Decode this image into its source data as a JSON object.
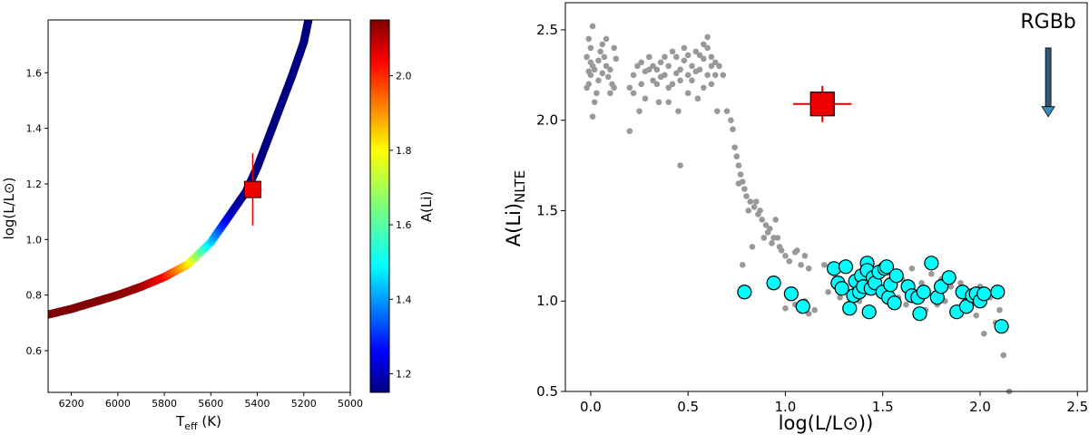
{
  "chart_data": [
    {
      "type": "line",
      "panel": "left",
      "xlabel_main": "T",
      "xlabel_sub": "eff",
      "xlabel_unit": " (K)",
      "ylabel": "log(L/L⊙)",
      "xlim": [
        6300,
        5000
      ],
      "ylim": [
        0.45,
        1.79
      ],
      "xticks": [
        6200,
        6000,
        5800,
        5600,
        5400,
        5200,
        5000
      ],
      "yticks": [
        "0.6",
        "0.8",
        "1.0",
        "1.2",
        "1.4",
        "1.6"
      ],
      "ytick_values": [
        0.6,
        0.8,
        1.0,
        1.2,
        1.4,
        1.6
      ],
      "track": {
        "teff": [
          6300,
          6200,
          6100,
          6000,
          5900,
          5800,
          5700,
          5600,
          5550,
          5500,
          5450,
          5400,
          5350,
          5300,
          5250,
          5200,
          5180
        ],
        "logL": [
          0.73,
          0.75,
          0.775,
          0.8,
          0.83,
          0.865,
          0.91,
          0.99,
          1.05,
          1.11,
          1.17,
          1.26,
          1.37,
          1.48,
          1.59,
          1.71,
          1.79
        ],
        "ali": [
          2.15,
          2.15,
          2.15,
          2.14,
          2.12,
          2.03,
          1.82,
          1.5,
          1.33,
          1.2,
          1.16,
          1.15,
          1.15,
          1.15,
          1.15,
          1.15,
          1.15
        ]
      },
      "star": {
        "teff": 5420,
        "logL": 1.18,
        "teff_err": 65,
        "logL_err": 0.13,
        "color": "#ee0000"
      },
      "colorbar": {
        "label": "A(Li)",
        "range": [
          1.15,
          2.15
        ],
        "ticks": [
          "1.2",
          "1.4",
          "1.6",
          "1.8",
          "2.0"
        ],
        "tick_values": [
          1.2,
          1.4,
          1.6,
          1.8,
          2.0
        ],
        "colormap": "jet"
      }
    },
    {
      "type": "scatter",
      "panel": "right",
      "xlabel": "log(L/L⊙))",
      "ylabel_main": "A(Li)",
      "ylabel_sub": "NLTE",
      "xlim": [
        -0.13,
        2.55
      ],
      "ylim": [
        0.5,
        2.65
      ],
      "xticks": [
        "0.0",
        "0.5",
        "1.0",
        "1.5",
        "2.0",
        "2.5"
      ],
      "xtick_values": [
        0.0,
        0.5,
        1.0,
        1.5,
        2.0,
        2.5
      ],
      "yticks": [
        "0.5",
        "1.0",
        "1.5",
        "2.0",
        "2.5"
      ],
      "ytick_values": [
        0.5,
        1.0,
        1.5,
        2.0,
        2.5
      ],
      "annotation": {
        "text": "RGBb",
        "x": 2.35,
        "y_start": 2.4,
        "y_end": 2.02
      },
      "series": [
        {
          "marker": "dot",
          "color": "#999999",
          "points": [
            [
              -0.01,
              2.2
            ],
            [
              0.0,
              2.25
            ],
            [
              0.01,
              2.3
            ],
            [
              -0.02,
              2.35
            ],
            [
              0.02,
              2.28
            ],
            [
              0.0,
              2.4
            ],
            [
              -0.01,
              2.45
            ],
            [
              0.01,
              2.52
            ],
            [
              0.03,
              2.15
            ],
            [
              -0.02,
              2.18
            ],
            [
              0.02,
              2.1
            ],
            [
              0.01,
              2.02
            ],
            [
              0.04,
              2.22
            ],
            [
              0.0,
              2.32
            ],
            [
              -0.01,
              2.27
            ],
            [
              0.05,
              2.38
            ],
            [
              0.06,
              2.42
            ],
            [
              0.07,
              2.35
            ],
            [
              0.08,
              2.3
            ],
            [
              0.06,
              2.26
            ],
            [
              0.09,
              2.24
            ],
            [
              0.1,
              2.28
            ],
            [
              0.11,
              2.2
            ],
            [
              0.12,
              2.4
            ],
            [
              0.13,
              2.34
            ],
            [
              0.08,
              2.45
            ],
            [
              0.1,
              2.15
            ],
            [
              0.12,
              2.18
            ],
            [
              0.04,
              2.33
            ],
            [
              0.2,
              1.94
            ],
            [
              0.2,
              2.18
            ],
            [
              0.22,
              2.25
            ],
            [
              0.24,
              2.3
            ],
            [
              0.26,
              2.2
            ],
            [
              0.28,
              2.27
            ],
            [
              0.3,
              2.35
            ],
            [
              0.32,
              2.22
            ],
            [
              0.34,
              2.28
            ],
            [
              0.36,
              2.32
            ],
            [
              0.38,
              2.25
            ],
            [
              0.4,
              2.3
            ],
            [
              0.42,
              2.2
            ],
            [
              0.44,
              2.35
            ],
            [
              0.46,
              2.28
            ],
            [
              0.48,
              2.33
            ],
            [
              0.5,
              2.25
            ],
            [
              0.52,
              2.3
            ],
            [
              0.54,
              2.38
            ],
            [
              0.56,
              2.28
            ],
            [
              0.58,
              2.34
            ],
            [
              0.6,
              2.4
            ],
            [
              0.62,
              2.3
            ],
            [
              0.64,
              2.25
            ],
            [
              0.22,
              2.15
            ],
            [
              0.26,
              2.32
            ],
            [
              0.3,
              2.28
            ],
            [
              0.34,
              2.2
            ],
            [
              0.38,
              2.35
            ],
            [
              0.42,
              2.38
            ],
            [
              0.46,
              2.22
            ],
            [
              0.5,
              2.36
            ],
            [
              0.54,
              2.27
            ],
            [
              0.58,
              2.42
            ],
            [
              0.6,
              2.25
            ],
            [
              0.62,
              2.35
            ],
            [
              0.64,
              2.32
            ],
            [
              0.28,
              2.12
            ],
            [
              0.32,
              2.3
            ],
            [
              0.36,
              2.24
            ],
            [
              0.4,
              2.18
            ],
            [
              0.44,
              2.26
            ],
            [
              0.48,
              2.4
            ],
            [
              0.52,
              2.22
            ],
            [
              0.56,
              2.36
            ],
            [
              0.6,
              2.46
            ],
            [
              0.62,
              2.2
            ],
            [
              0.4,
              2.1
            ],
            [
              0.45,
              2.05
            ],
            [
              0.5,
              2.15
            ],
            [
              0.55,
              2.12
            ],
            [
              0.58,
              2.18
            ],
            [
              0.35,
              2.1
            ],
            [
              0.25,
              2.05
            ],
            [
              0.46,
              1.75
            ],
            [
              0.65,
              2.05
            ],
            [
              0.66,
              2.3
            ],
            [
              0.68,
              2.25
            ],
            [
              0.7,
              2.05
            ],
            [
              0.72,
              2.0
            ],
            [
              0.73,
              1.95
            ],
            [
              0.74,
              1.85
            ],
            [
              0.75,
              1.8
            ],
            [
              0.76,
              1.75
            ],
            [
              0.77,
              1.7
            ],
            [
              0.78,
              1.66
            ],
            [
              0.79,
              1.62
            ],
            [
              0.8,
              1.58
            ],
            [
              0.82,
              1.55
            ],
            [
              0.84,
              1.52
            ],
            [
              0.85,
              1.55
            ],
            [
              0.87,
              1.5
            ],
            [
              0.88,
              1.45
            ],
            [
              0.9,
              1.42
            ],
            [
              0.92,
              1.4
            ],
            [
              0.94,
              1.35
            ],
            [
              0.95,
              1.45
            ],
            [
              0.97,
              1.3
            ],
            [
              0.98,
              1.28
            ],
            [
              1.0,
              1.25
            ],
            [
              1.02,
              1.22
            ],
            [
              1.05,
              1.27
            ],
            [
              1.08,
              1.2
            ],
            [
              1.1,
              1.25
            ],
            [
              1.12,
              1.18
            ],
            [
              0.76,
              1.65
            ],
            [
              0.81,
              1.5
            ],
            [
              0.86,
              1.48
            ],
            [
              0.91,
              1.38
            ],
            [
              0.96,
              1.35
            ],
            [
              1.06,
              1.28
            ],
            [
              0.78,
              1.2
            ],
            [
              0.83,
              1.3
            ],
            [
              0.89,
              1.35
            ],
            [
              0.93,
              1.32
            ],
            [
              1.2,
              1.2
            ],
            [
              1.25,
              1.15
            ],
            [
              1.3,
              1.18
            ],
            [
              1.35,
              1.12
            ],
            [
              1.4,
              1.15
            ],
            [
              1.45,
              1.1
            ],
            [
              1.5,
              1.2
            ],
            [
              1.55,
              1.15
            ],
            [
              1.6,
              1.12
            ],
            [
              1.65,
              1.18
            ],
            [
              1.7,
              1.1
            ],
            [
              1.75,
              1.15
            ],
            [
              1.8,
              1.12
            ],
            [
              1.85,
              1.08
            ],
            [
              1.9,
              1.1
            ],
            [
              1.95,
              1.05
            ],
            [
              2.0,
              1.08
            ],
            [
              2.05,
              1.02
            ],
            [
              2.1,
              0.95
            ],
            [
              1.22,
              1.05
            ],
            [
              1.28,
              1.02
            ],
            [
              1.33,
              0.98
            ],
            [
              1.38,
              1.0
            ],
            [
              1.42,
              0.95
            ],
            [
              1.48,
              1.05
            ],
            [
              1.52,
              1.0
            ],
            [
              1.58,
              1.02
            ],
            [
              1.62,
              0.98
            ],
            [
              1.68,
              1.0
            ],
            [
              1.72,
              0.95
            ],
            [
              1.78,
              0.98
            ],
            [
              1.82,
              1.0
            ],
            [
              1.88,
              0.95
            ],
            [
              1.92,
              1.0
            ],
            [
              1.98,
              0.92
            ],
            [
              2.02,
              0.82
            ],
            [
              2.08,
              0.88
            ],
            [
              2.12,
              0.7
            ],
            [
              2.15,
              0.5
            ],
            [
              1.15,
              0.95
            ],
            [
              1.1,
              1.0
            ],
            [
              1.05,
              0.98
            ],
            [
              1.0,
              0.96
            ],
            [
              1.12,
              0.93
            ]
          ]
        },
        {
          "marker": "circle",
          "color": "#00ffff",
          "points": [
            [
              0.79,
              1.05
            ],
            [
              0.94,
              1.1
            ],
            [
              1.03,
              1.04
            ],
            [
              1.09,
              0.97
            ],
            [
              1.25,
              1.18
            ],
            [
              1.27,
              1.1
            ],
            [
              1.29,
              1.07
            ],
            [
              1.31,
              1.19
            ],
            [
              1.33,
              0.96
            ],
            [
              1.35,
              1.03
            ],
            [
              1.36,
              1.11
            ],
            [
              1.38,
              1.05
            ],
            [
              1.39,
              1.14
            ],
            [
              1.4,
              1.08
            ],
            [
              1.42,
              1.21
            ],
            [
              1.42,
              1.17
            ],
            [
              1.43,
              0.94
            ],
            [
              1.44,
              1.07
            ],
            [
              1.45,
              1.13
            ],
            [
              1.46,
              1.1
            ],
            [
              1.48,
              1.16
            ],
            [
              1.5,
              1.05
            ],
            [
              1.51,
              1.18
            ],
            [
              1.52,
              1.19
            ],
            [
              1.53,
              1.02
            ],
            [
              1.54,
              1.09
            ],
            [
              1.56,
              0.99
            ],
            [
              1.57,
              1.14
            ],
            [
              1.63,
              1.08
            ],
            [
              1.65,
              1.03
            ],
            [
              1.68,
              1.02
            ],
            [
              1.69,
              0.93
            ],
            [
              1.71,
              1.05
            ],
            [
              1.75,
              1.21
            ],
            [
              1.78,
              1.02
            ],
            [
              1.8,
              1.08
            ],
            [
              1.84,
              1.13
            ],
            [
              1.88,
              0.94
            ],
            [
              1.91,
              1.05
            ],
            [
              1.93,
              0.97
            ],
            [
              1.96,
              1.03
            ],
            [
              1.98,
              1.04
            ],
            [
              2.0,
              1.0
            ],
            [
              2.02,
              1.04
            ],
            [
              2.09,
              1.05
            ],
            [
              2.11,
              0.86
            ]
          ]
        },
        {
          "marker": "square",
          "color": "#ee0000",
          "points": [
            [
              1.19,
              2.09
            ]
          ],
          "x_err": 0.15,
          "y_err": 0.1
        }
      ]
    }
  ]
}
